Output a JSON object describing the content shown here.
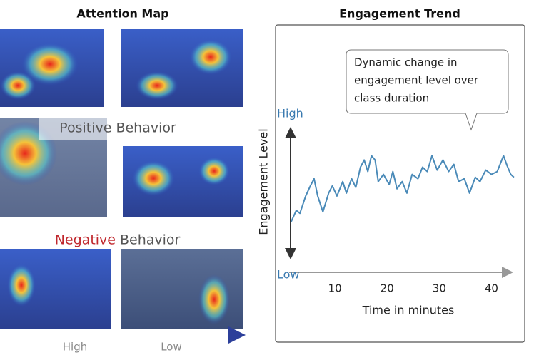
{
  "attention_map": {
    "title": "Attention Map",
    "positive": "Positive Behavior",
    "negative": [
      "Negative",
      "Behavior"
    ],
    "scale": [
      "High",
      "Low"
    ]
  },
  "chart_data": {
    "type": "line",
    "title": "Engagement Trend",
    "x_label": "Time in minutes",
    "y_label": "Engagement Level",
    "annotation": [
      "Dynamic change in",
      "engagement level over",
      "class duration"
    ],
    "xlim": [
      0,
      45
    ],
    "xticks": [
      10,
      20,
      30,
      40
    ],
    "ylim": [
      0,
      1
    ],
    "yticks": [
      {
        "value": 1,
        "label": "High"
      },
      {
        "value": 0,
        "label": "Low"
      }
    ],
    "series": [
      {
        "color": "#4a8ab8",
        "x": [
          1.6,
          2.6,
          3.3,
          4.4,
          5.3,
          6.0,
          6.7,
          7.7,
          8.8,
          9.5,
          10.4,
          11.5,
          12.2,
          13.2,
          14.0,
          14.9,
          15.6,
          16.3,
          17.0,
          17.7,
          18.3,
          19.3,
          20.4,
          21.1,
          21.9,
          22.9,
          23.8,
          24.8,
          25.9,
          26.8,
          27.7,
          28.6,
          29.6,
          30.7,
          31.8,
          32.8,
          33.7,
          34.8,
          35.8,
          36.9,
          37.8,
          38.9,
          40.0,
          41.1,
          42.3,
          43.0,
          43.7,
          44.3
        ],
        "values": [
          0.35,
          0.43,
          0.41,
          0.53,
          0.6,
          0.65,
          0.53,
          0.42,
          0.55,
          0.6,
          0.53,
          0.63,
          0.55,
          0.65,
          0.59,
          0.73,
          0.78,
          0.7,
          0.81,
          0.78,
          0.63,
          0.68,
          0.61,
          0.7,
          0.58,
          0.63,
          0.55,
          0.68,
          0.65,
          0.73,
          0.7,
          0.81,
          0.71,
          0.78,
          0.7,
          0.75,
          0.63,
          0.65,
          0.55,
          0.66,
          0.63,
          0.71,
          0.68,
          0.7,
          0.81,
          0.74,
          0.68,
          0.66
        ]
      }
    ]
  }
}
